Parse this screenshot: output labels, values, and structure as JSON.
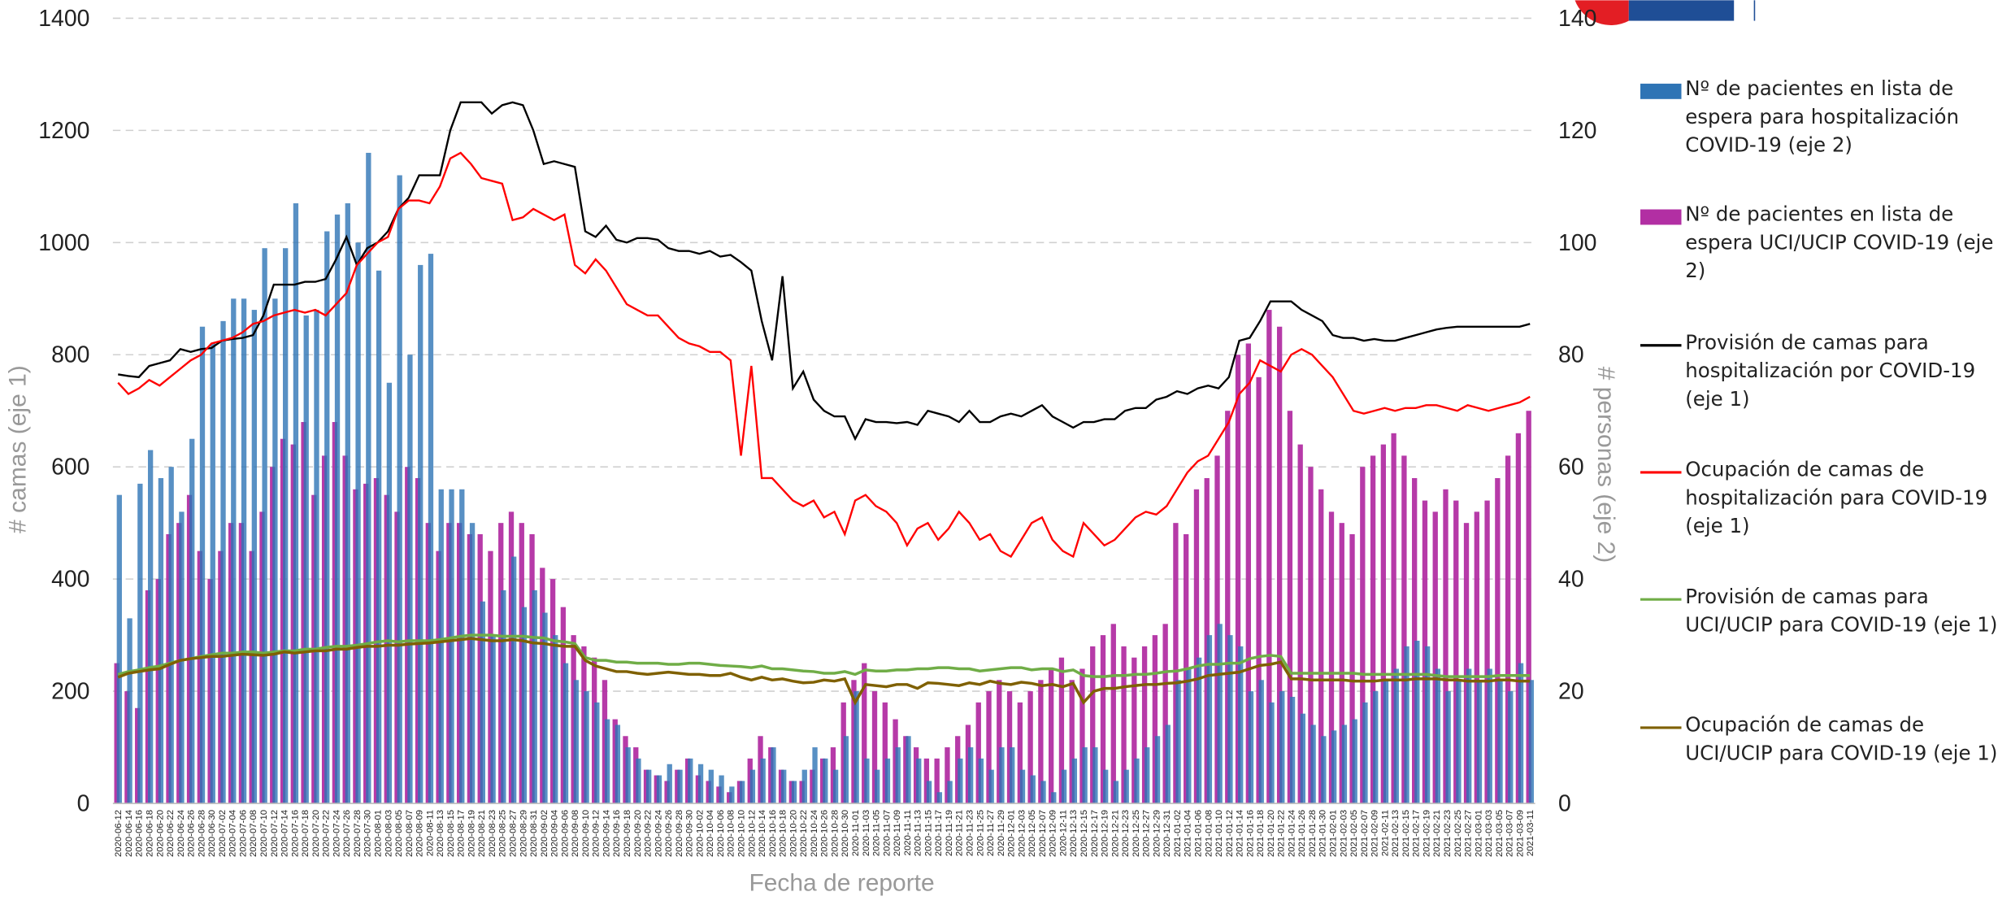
{
  "chart_data": {
    "type": "combo",
    "x_label": "Fecha de reporte",
    "y_label": "# camas (eje 1)",
    "y2_label": "# personas (eje 2)",
    "ylim": [
      0,
      1400
    ],
    "yticks": [
      0,
      200,
      400,
      600,
      800,
      1000,
      1200,
      1400
    ],
    "y2lim": [
      0,
      140
    ],
    "y2ticks": [
      0,
      20,
      40,
      60,
      80,
      100,
      120,
      140
    ],
    "grid": true,
    "legend": "right",
    "categories": [
      "2020-06-12",
      "2020-06-14",
      "2020-06-16",
      "2020-06-18",
      "2020-06-20",
      "2020-06-22",
      "2020-06-24",
      "2020-06-26",
      "2020-06-28",
      "2020-06-30",
      "2020-07-02",
      "2020-07-04",
      "2020-07-06",
      "2020-07-08",
      "2020-07-10",
      "2020-07-12",
      "2020-07-14",
      "2020-07-16",
      "2020-07-18",
      "2020-07-20",
      "2020-07-22",
      "2020-07-24",
      "2020-07-26",
      "2020-07-28",
      "2020-07-30",
      "2020-08-01",
      "2020-08-03",
      "2020-08-05",
      "2020-08-07",
      "2020-08-09",
      "2020-08-11",
      "2020-08-13",
      "2020-08-15",
      "2020-08-17",
      "2020-08-19",
      "2020-08-21",
      "2020-08-23",
      "2020-08-25",
      "2020-08-27",
      "2020-08-29",
      "2020-08-31",
      "2020-09-02",
      "2020-09-04",
      "2020-09-06",
      "2020-09-08",
      "2020-09-10",
      "2020-09-12",
      "2020-09-14",
      "2020-09-16",
      "2020-09-18",
      "2020-09-20",
      "2020-09-22",
      "2020-09-24",
      "2020-09-26",
      "2020-09-28",
      "2020-09-30",
      "2020-10-02",
      "2020-10-04",
      "2020-10-06",
      "2020-10-08",
      "2020-10-10",
      "2020-10-12",
      "2020-10-14",
      "2020-10-16",
      "2020-10-18",
      "2020-10-20",
      "2020-10-22",
      "2020-10-24",
      "2020-10-26",
      "2020-10-28",
      "2020-10-30",
      "2020-11-01",
      "2020-11-03",
      "2020-11-05",
      "2020-11-07",
      "2020-11-09",
      "2020-11-11",
      "2020-11-13",
      "2020-11-15",
      "2020-11-17",
      "2020-11-19",
      "2020-11-21",
      "2020-11-23",
      "2020-11-25",
      "2020-11-27",
      "2020-11-29",
      "2020-12-01",
      "2020-12-03",
      "2020-12-05",
      "2020-12-07",
      "2020-12-09",
      "2020-12-11",
      "2020-12-13",
      "2020-12-15",
      "2020-12-17",
      "2020-12-19",
      "2020-12-21",
      "2020-12-23",
      "2020-12-25",
      "2020-12-27",
      "2020-12-29",
      "2020-12-31",
      "2021-01-02",
      "2021-01-04",
      "2021-01-06",
      "2021-01-08",
      "2021-01-10",
      "2021-01-12",
      "2021-01-14",
      "2021-01-16",
      "2021-01-18",
      "2021-01-20",
      "2021-01-22",
      "2021-01-24",
      "2021-01-26",
      "2021-01-28",
      "2021-01-30",
      "2021-02-01",
      "2021-02-03",
      "2021-02-05",
      "2021-02-07",
      "2021-02-09",
      "2021-02-11",
      "2021-02-13",
      "2021-02-15",
      "2021-02-17",
      "2021-02-19",
      "2021-02-21",
      "2021-02-23",
      "2021-02-25",
      "2021-02-27",
      "2021-03-01",
      "2021-03-03",
      "2021-03-05",
      "2021-03-07",
      "2021-03-09",
      "2021-03-11"
    ],
    "series": [
      {
        "name": "Nº de pacientes en lista de espera UCI/UCIP COVID-19 (eje 2)",
        "type": "bar",
        "axis": "y2",
        "color": "#b22fa3",
        "values": [
          25,
          20,
          17,
          38,
          40,
          48,
          50,
          55,
          45,
          40,
          45,
          50,
          50,
          45,
          52,
          60,
          65,
          64,
          68,
          55,
          62,
          68,
          62,
          56,
          57,
          58,
          55,
          52,
          60,
          58,
          50,
          45,
          50,
          50,
          48,
          48,
          45,
          50,
          52,
          50,
          48,
          42,
          40,
          35,
          30,
          28,
          26,
          22,
          15,
          12,
          10,
          6,
          5,
          4,
          6,
          8,
          5,
          4,
          3,
          2,
          4,
          8,
          12,
          10,
          6,
          4,
          4,
          6,
          8,
          10,
          18,
          22,
          25,
          20,
          18,
          15,
          12,
          10,
          8,
          8,
          10,
          12,
          14,
          18,
          20,
          22,
          20,
          18,
          20,
          22,
          24,
          26,
          22,
          24,
          28,
          30,
          32,
          28,
          26,
          28,
          30,
          32,
          50,
          48,
          56,
          58,
          62,
          70,
          80,
          82,
          76,
          88,
          85,
          70,
          64,
          60,
          56,
          52,
          50,
          48,
          60,
          62,
          64,
          66,
          62,
          58,
          54,
          52,
          56,
          54,
          50,
          52,
          54,
          58,
          62,
          66,
          70
        ]
      },
      {
        "name": "Nº de pacientes en lista de espera para hospitalización COVID-19 (eje 2)",
        "type": "bar",
        "axis": "y2",
        "color": "#2e74b5",
        "values": [
          55,
          33,
          57,
          63,
          58,
          60,
          52,
          65,
          85,
          82,
          86,
          90,
          90,
          88,
          99,
          90,
          99,
          107,
          87,
          88,
          102,
          105,
          107,
          100,
          116,
          95,
          75,
          112,
          80,
          96,
          98,
          56,
          56,
          56,
          50,
          36,
          30,
          38,
          44,
          35,
          38,
          34,
          30,
          25,
          22,
          20,
          18,
          15,
          14,
          10,
          8,
          6,
          5,
          7,
          6,
          8,
          7,
          6,
          5,
          3,
          4,
          6,
          8,
          10,
          6,
          4,
          6,
          10,
          8,
          6,
          12,
          20,
          8,
          6,
          8,
          10,
          12,
          8,
          4,
          2,
          4,
          8,
          10,
          8,
          6,
          10,
          10,
          6,
          5,
          4,
          2,
          6,
          8,
          10,
          10,
          6,
          4,
          6,
          8,
          10,
          12,
          14,
          22,
          24,
          26,
          30,
          32,
          30,
          28,
          20,
          22,
          18,
          20,
          19,
          16,
          14,
          12,
          13,
          14,
          15,
          18,
          20,
          22,
          24,
          28,
          29,
          28,
          24,
          20,
          22,
          24,
          22,
          24,
          22,
          20,
          25,
          22
        ]
      },
      {
        "name": "Provisión de camas para hospitalización por COVID-19 (eje 1)",
        "type": "line",
        "axis": "y",
        "color": "#000000",
        "values": [
          765,
          762,
          760,
          780,
          785,
          790,
          810,
          805,
          810,
          812,
          825,
          828,
          830,
          835,
          870,
          925,
          925,
          925,
          930,
          930,
          935,
          970,
          1010,
          960,
          990,
          1000,
          1020,
          1060,
          1080,
          1120,
          1120,
          1120,
          1200,
          1250,
          1250,
          1250,
          1230,
          1245,
          1250,
          1245,
          1200,
          1140,
          1145,
          1140,
          1135,
          1020,
          1010,
          1030,
          1005,
          1000,
          1008,
          1008,
          1005,
          990,
          985,
          985,
          980,
          985,
          975,
          978,
          965,
          950,
          860,
          790,
          940,
          740,
          770,
          720,
          700,
          690,
          690,
          650,
          685,
          680,
          680,
          678,
          680,
          675,
          700,
          695,
          690,
          680,
          700,
          680,
          680,
          690,
          695,
          690,
          700,
          710,
          690,
          680,
          670,
          680,
          680,
          685,
          685,
          700,
          705,
          705,
          720,
          725,
          735,
          730,
          740,
          745,
          740,
          760,
          825,
          830,
          860,
          895,
          895,
          895,
          880,
          870,
          860,
          835,
          830,
          830,
          825,
          828,
          825,
          825,
          830,
          835,
          840,
          845,
          848,
          850,
          850,
          850,
          850,
          850,
          850,
          850,
          855
        ]
      },
      {
        "name": "Ocupación de camas de hospitalización para COVID-19 (eje 1)",
        "type": "line",
        "axis": "y",
        "color": "#ff0000",
        "values": [
          750,
          730,
          740,
          755,
          745,
          760,
          775,
          790,
          800,
          820,
          825,
          830,
          840,
          855,
          860,
          870,
          875,
          880,
          875,
          880,
          870,
          890,
          910,
          960,
          980,
          1000,
          1010,
          1060,
          1075,
          1075,
          1070,
          1100,
          1150,
          1160,
          1140,
          1115,
          1110,
          1105,
          1040,
          1045,
          1060,
          1050,
          1040,
          1050,
          960,
          945,
          970,
          950,
          920,
          890,
          880,
          870,
          870,
          850,
          830,
          820,
          815,
          805,
          805,
          790,
          620,
          780,
          580,
          580,
          560,
          540,
          530,
          540,
          510,
          520,
          480,
          540,
          550,
          530,
          520,
          500,
          460,
          490,
          500,
          470,
          490,
          520,
          500,
          470,
          480,
          450,
          440,
          470,
          500,
          510,
          470,
          450,
          440,
          500,
          480,
          460,
          470,
          490,
          510,
          520,
          515,
          530,
          560,
          590,
          610,
          620,
          650,
          680,
          730,
          750,
          790,
          780,
          770,
          800,
          810,
          800,
          780,
          760,
          730,
          700,
          695,
          700,
          705,
          700,
          705,
          705,
          710,
          710,
          705,
          700,
          710,
          705,
          700,
          705,
          710,
          715,
          725
        ]
      },
      {
        "name": "Provisión de camas para UCI/UCIP para COVID-19 (eje 1)",
        "type": "line",
        "axis": "y",
        "color": "#70ad47",
        "values": [
          230,
          235,
          238,
          242,
          245,
          250,
          255,
          258,
          262,
          265,
          268,
          268,
          270,
          270,
          268,
          270,
          272,
          272,
          275,
          275,
          278,
          280,
          280,
          282,
          285,
          288,
          290,
          288,
          290,
          290,
          290,
          292,
          295,
          298,
          300,
          300,
          300,
          298,
          298,
          298,
          296,
          295,
          290,
          288,
          285,
          260,
          255,
          255,
          252,
          252,
          250,
          250,
          250,
          248,
          248,
          250,
          250,
          248,
          246,
          245,
          244,
          242,
          245,
          240,
          240,
          238,
          236,
          235,
          232,
          232,
          235,
          230,
          238,
          236,
          236,
          238,
          238,
          240,
          240,
          242,
          242,
          240,
          240,
          236,
          238,
          240,
          242,
          242,
          238,
          240,
          240,
          235,
          238,
          228,
          226,
          226,
          228,
          228,
          230,
          230,
          232,
          235,
          236,
          240,
          245,
          248,
          248,
          250,
          250,
          258,
          262,
          264,
          262,
          232,
          232,
          232,
          232,
          232,
          232,
          232,
          230,
          230,
          230,
          230,
          230,
          230,
          230,
          228,
          226,
          226,
          226,
          226,
          226,
          228,
          228,
          228,
          228
        ]
      },
      {
        "name": "Ocupación de camas de UCI/UCIP para COVID-19 (eje 1)",
        "type": "line",
        "axis": "y",
        "color": "#7f6000",
        "values": [
          225,
          232,
          235,
          238,
          240,
          248,
          255,
          258,
          260,
          262,
          262,
          264,
          266,
          265,
          264,
          266,
          270,
          268,
          270,
          272,
          272,
          275,
          275,
          278,
          280,
          280,
          282,
          282,
          284,
          285,
          286,
          288,
          290,
          292,
          294,
          292,
          290,
          290,
          292,
          290,
          286,
          285,
          282,
          280,
          280,
          255,
          245,
          240,
          235,
          235,
          232,
          230,
          232,
          234,
          232,
          230,
          230,
          228,
          228,
          232,
          225,
          220,
          225,
          220,
          222,
          218,
          215,
          216,
          220,
          218,
          222,
          180,
          212,
          210,
          208,
          212,
          212,
          205,
          215,
          214,
          212,
          210,
          215,
          212,
          218,
          214,
          212,
          216,
          214,
          210,
          212,
          208,
          214,
          180,
          200,
          205,
          205,
          208,
          210,
          212,
          212,
          214,
          215,
          218,
          222,
          228,
          230,
          232,
          234,
          240,
          246,
          248,
          252,
          222,
          222,
          220,
          220,
          220,
          220,
          218,
          218,
          218,
          220,
          220,
          220,
          222,
          222,
          222,
          220,
          220,
          218,
          218,
          218,
          220,
          220,
          218,
          218
        ]
      }
    ]
  }
}
